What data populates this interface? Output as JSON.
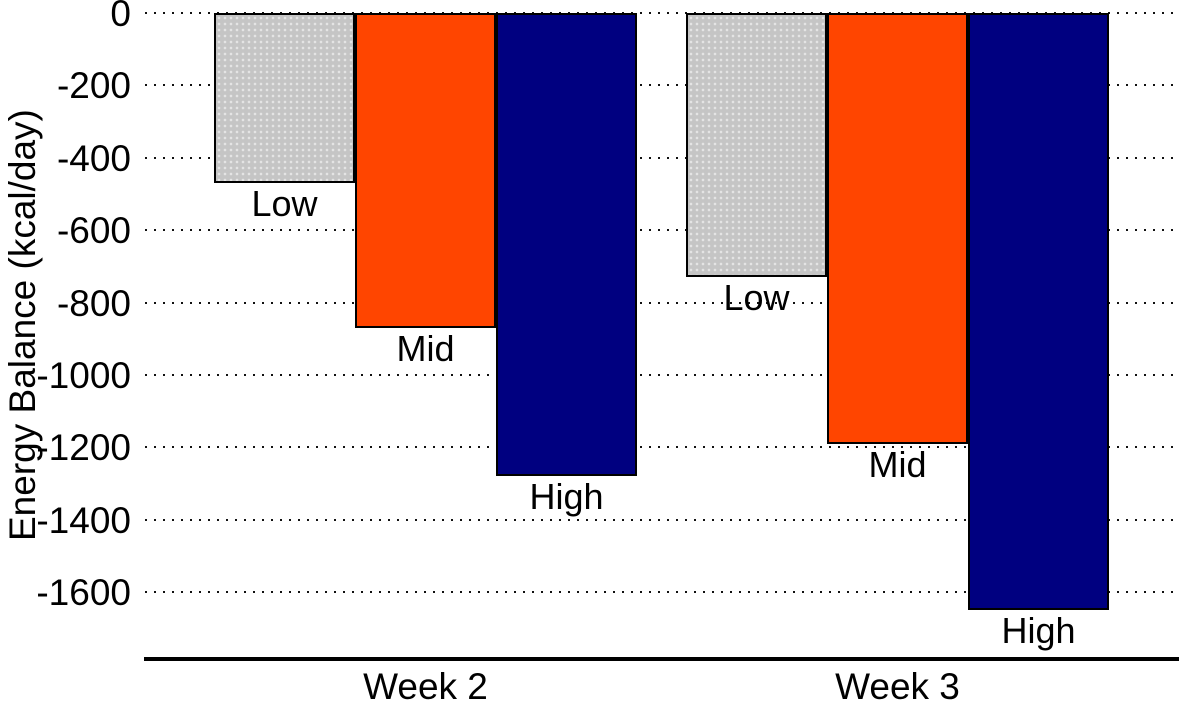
{
  "chart_data": {
    "type": "bar",
    "title": "",
    "xlabel": "",
    "ylabel": "Energy Balance (kcal/day)",
    "categories": [
      "Week 2",
      "Week 3"
    ],
    "series": [
      {
        "name": "Low",
        "color": "#c5c5c5",
        "values": [
          -470,
          -730
        ]
      },
      {
        "name": "Mid",
        "color": "#ff4500",
        "values": [
          -870,
          -1190
        ]
      },
      {
        "name": "High",
        "color": "#000080",
        "values": [
          -1280,
          -1650
        ]
      }
    ],
    "bar_labels_position": "below-bar-end",
    "yticks": [
      0,
      -200,
      -400,
      -600,
      -800,
      -1000,
      -1200,
      -1400,
      -1600
    ],
    "ylim": [
      -1790,
      0
    ],
    "grid": "horizontal-dotted",
    "legend": "none"
  }
}
